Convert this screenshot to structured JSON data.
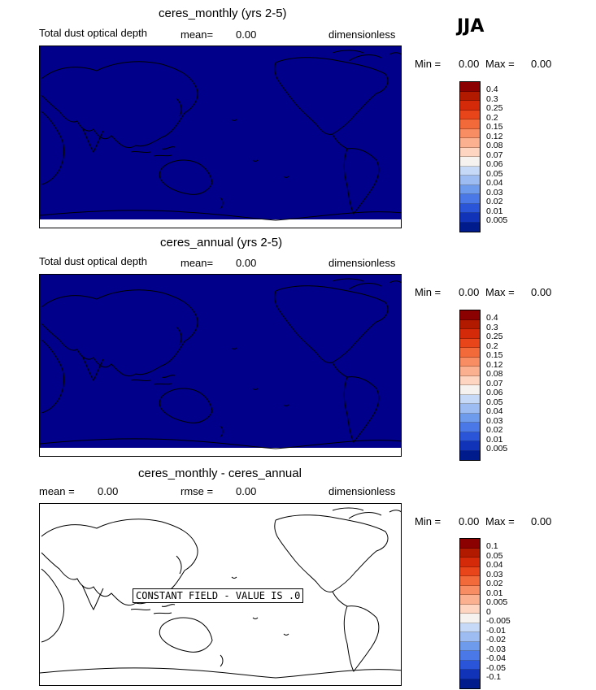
{
  "season": "JJA",
  "panels": [
    {
      "title": "ceres_monthly (yrs 2-5)",
      "variable": "Total dust optical depth",
      "mean_label": "mean=",
      "mean_value": "0.00",
      "units": "dimensionless",
      "min_label": "Min =",
      "min_value": "0.00",
      "max_label": "Max =",
      "max_value": "0.00",
      "fill": "#00008b",
      "colorbar": {
        "labels": [
          "0.4",
          "0.3",
          "0.25",
          "0.2",
          "0.15",
          "0.12",
          "0.08",
          "0.07",
          "0.06",
          "0.05",
          "0.04",
          "0.03",
          "0.02",
          "0.01",
          "0.005"
        ],
        "colors": [
          "#8b0000",
          "#b21a00",
          "#d42a0a",
          "#e8451a",
          "#f26a3a",
          "#f88c62",
          "#fbb08f",
          "#fdd5c0",
          "#f5f2f0",
          "#c6d9f7",
          "#9dbdf2",
          "#6f9bed",
          "#4a78e6",
          "#2a55d8",
          "#1033b8",
          "#001b8c"
        ]
      }
    },
    {
      "title": "ceres_annual (yrs 2-5)",
      "variable": "Total dust optical depth",
      "mean_label": "mean=",
      "mean_value": "0.00",
      "units": "dimensionless",
      "min_label": "Min =",
      "min_value": "0.00",
      "max_label": "Max =",
      "max_value": "0.00",
      "fill": "#00008b",
      "colorbar": {
        "labels": [
          "0.4",
          "0.3",
          "0.25",
          "0.2",
          "0.15",
          "0.12",
          "0.08",
          "0.07",
          "0.06",
          "0.05",
          "0.04",
          "0.03",
          "0.02",
          "0.01",
          "0.005"
        ],
        "colors": [
          "#8b0000",
          "#b21a00",
          "#d42a0a",
          "#e8451a",
          "#f26a3a",
          "#f88c62",
          "#fbb08f",
          "#fdd5c0",
          "#f5f2f0",
          "#c6d9f7",
          "#9dbdf2",
          "#6f9bed",
          "#4a78e6",
          "#2a55d8",
          "#1033b8",
          "#001b8c"
        ]
      }
    },
    {
      "title": "ceres_monthly - ceres_annual",
      "mean_label": "mean =",
      "mean_value": "0.00",
      "rmse_label": "rmse =",
      "rmse_value": "0.00",
      "units": "dimensionless",
      "min_label": "Min =",
      "min_value": "0.00",
      "max_label": "Max =",
      "max_value": "0.00",
      "fill": "#ffffff",
      "constant_field_label": "CONSTANT FIELD - VALUE IS .0",
      "colorbar": {
        "labels": [
          "0.1",
          "0.05",
          "0.04",
          "0.03",
          "0.02",
          "0.01",
          "0.005",
          "0",
          "-0.005",
          "-0.01",
          "-0.02",
          "-0.03",
          "-0.04",
          "-0.05",
          "-0.1"
        ],
        "colors": [
          "#8b0000",
          "#b21a00",
          "#d42a0a",
          "#e8451a",
          "#f26a3a",
          "#f88c62",
          "#fbb08f",
          "#fdd5c0",
          "#f5f2f0",
          "#c6d9f7",
          "#9dbdf2",
          "#6f9bed",
          "#4a78e6",
          "#2a55d8",
          "#1033b8",
          "#001b8c"
        ]
      }
    }
  ]
}
